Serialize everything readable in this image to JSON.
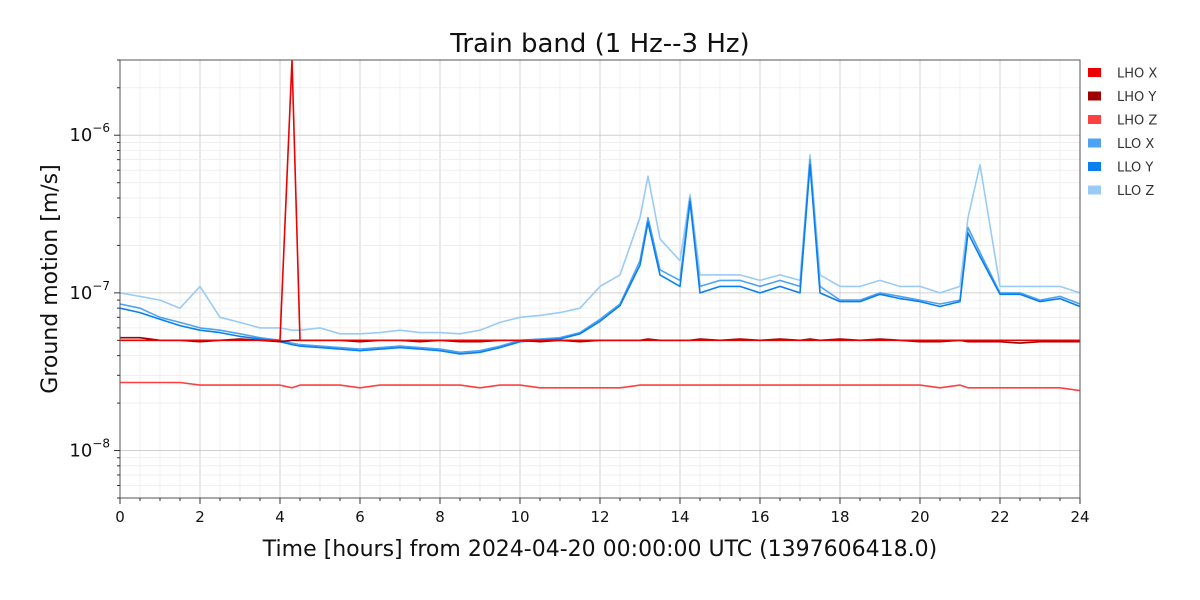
{
  "chart_data": {
    "type": "line",
    "title": "Train band (1 Hz--3 Hz)",
    "xlabel": "Time [hours] from 2024-04-20 00:00:00 UTC (1397606418.0)",
    "ylabel": "Ground motion [m/s]",
    "xlim": [
      0,
      24
    ],
    "ylim": [
      5e-09,
      3e-06
    ],
    "yscale": "log",
    "grid": true,
    "legend_position": "outside-top-right",
    "x_ticks": [
      0,
      2,
      4,
      6,
      8,
      10,
      12,
      14,
      16,
      18,
      20,
      22,
      24
    ],
    "x_tick_labels": [
      "0",
      "2",
      "4",
      "6",
      "8",
      "10",
      "12",
      "14",
      "16",
      "18",
      "20",
      "22",
      "24"
    ],
    "y_ticks": [
      1e-08,
      1e-07,
      1e-06
    ],
    "y_tick_labels": [
      {
        "base": "10",
        "exp": "−8"
      },
      {
        "base": "10",
        "exp": "−7"
      },
      {
        "base": "10",
        "exp": "−6"
      }
    ],
    "x": [
      0,
      0.5,
      1,
      1.5,
      2,
      2.5,
      3,
      3.5,
      4,
      4.3,
      4.5,
      5,
      5.5,
      6,
      6.5,
      7,
      7.5,
      8,
      8.5,
      9,
      9.5,
      10,
      10.5,
      11,
      11.5,
      12,
      12.5,
      13,
      13.2,
      13.5,
      14,
      14.25,
      14.5,
      15,
      15.5,
      16,
      16.5,
      17,
      17.25,
      17.5,
      18,
      18.5,
      19,
      19.5,
      20,
      20.5,
      21,
      21.2,
      21.5,
      22,
      22.5,
      23,
      23.5,
      24
    ],
    "series": [
      {
        "name": "LHO X",
        "color": "#ee0000",
        "values": [
          5e-08,
          5e-08,
          5e-08,
          5e-08,
          5e-08,
          5e-08,
          5e-08,
          5e-08,
          5e-08,
          3e-06,
          5e-08,
          5e-08,
          5e-08,
          5e-08,
          5e-08,
          5e-08,
          5e-08,
          5e-08,
          5e-08,
          5e-08,
          5e-08,
          5e-08,
          5e-08,
          5e-08,
          5e-08,
          5e-08,
          5e-08,
          5e-08,
          5e-08,
          5e-08,
          5e-08,
          5e-08,
          5e-08,
          5e-08,
          5e-08,
          5e-08,
          5e-08,
          5e-08,
          5e-08,
          5e-08,
          5e-08,
          5e-08,
          5e-08,
          5e-08,
          5e-08,
          5e-08,
          5e-08,
          5e-08,
          5e-08,
          5e-08,
          5e-08,
          5e-08,
          5e-08,
          5e-08
        ]
      },
      {
        "name": "LHO Y",
        "color": "#a00000",
        "values": [
          5.2e-08,
          5.2e-08,
          5e-08,
          5e-08,
          4.9e-08,
          5e-08,
          5.1e-08,
          5e-08,
          4.9e-08,
          5e-08,
          5e-08,
          5e-08,
          5e-08,
          4.9e-08,
          5e-08,
          5e-08,
          4.9e-08,
          5e-08,
          4.9e-08,
          4.9e-08,
          5e-08,
          5e-08,
          4.9e-08,
          5e-08,
          4.9e-08,
          5e-08,
          5e-08,
          5e-08,
          5.1e-08,
          5e-08,
          5e-08,
          5e-08,
          5.1e-08,
          5e-08,
          5.1e-08,
          5e-08,
          5.1e-08,
          5e-08,
          5.1e-08,
          5e-08,
          5.1e-08,
          5e-08,
          5.1e-08,
          5e-08,
          4.9e-08,
          4.9e-08,
          5e-08,
          4.9e-08,
          4.9e-08,
          4.9e-08,
          4.8e-08,
          4.9e-08,
          4.9e-08,
          4.9e-08
        ]
      },
      {
        "name": "LHO Z",
        "color": "#ff4040",
        "values": [
          2.7e-08,
          2.7e-08,
          2.7e-08,
          2.7e-08,
          2.6e-08,
          2.6e-08,
          2.6e-08,
          2.6e-08,
          2.6e-08,
          2.5e-08,
          2.6e-08,
          2.6e-08,
          2.6e-08,
          2.5e-08,
          2.6e-08,
          2.6e-08,
          2.6e-08,
          2.6e-08,
          2.6e-08,
          2.5e-08,
          2.6e-08,
          2.6e-08,
          2.5e-08,
          2.5e-08,
          2.5e-08,
          2.5e-08,
          2.5e-08,
          2.6e-08,
          2.6e-08,
          2.6e-08,
          2.6e-08,
          2.6e-08,
          2.6e-08,
          2.6e-08,
          2.6e-08,
          2.6e-08,
          2.6e-08,
          2.6e-08,
          2.6e-08,
          2.6e-08,
          2.6e-08,
          2.6e-08,
          2.6e-08,
          2.6e-08,
          2.6e-08,
          2.5e-08,
          2.6e-08,
          2.5e-08,
          2.5e-08,
          2.5e-08,
          2.5e-08,
          2.5e-08,
          2.5e-08,
          2.4e-08
        ]
      },
      {
        "name": "LLO X",
        "color": "#4da3f2",
        "values": [
          8.5e-08,
          8e-08,
          7e-08,
          6.5e-08,
          6e-08,
          5.8e-08,
          5.5e-08,
          5.2e-08,
          5e-08,
          4.8e-08,
          4.7e-08,
          4.6e-08,
          4.5e-08,
          4.4e-08,
          4.5e-08,
          4.6e-08,
          4.5e-08,
          4.4e-08,
          4.2e-08,
          4.3e-08,
          4.6e-08,
          5e-08,
          5.1e-08,
          5.2e-08,
          5.6e-08,
          6.8e-08,
          8.5e-08,
          1.6e-07,
          3e-07,
          1.4e-07,
          1.2e-07,
          4e-07,
          1.1e-07,
          1.2e-07,
          1.2e-07,
          1.1e-07,
          1.2e-07,
          1.1e-07,
          7e-07,
          1.1e-07,
          9e-08,
          9e-08,
          1e-07,
          9.5e-08,
          9e-08,
          8.5e-08,
          9e-08,
          2.6e-07,
          1.8e-07,
          1e-07,
          1e-07,
          9e-08,
          9.5e-08,
          8.5e-08
        ]
      },
      {
        "name": "LLO Y",
        "color": "#0a7ff0",
        "values": [
          8e-08,
          7.5e-08,
          6.8e-08,
          6.2e-08,
          5.8e-08,
          5.6e-08,
          5.3e-08,
          5.1e-08,
          4.9e-08,
          4.7e-08,
          4.6e-08,
          4.5e-08,
          4.4e-08,
          4.3e-08,
          4.4e-08,
          4.5e-08,
          4.4e-08,
          4.3e-08,
          4.1e-08,
          4.2e-08,
          4.5e-08,
          4.9e-08,
          5e-08,
          5.1e-08,
          5.5e-08,
          6.6e-08,
          8.3e-08,
          1.5e-07,
          2.8e-07,
          1.3e-07,
          1.1e-07,
          3.8e-07,
          1e-07,
          1.1e-07,
          1.1e-07,
          1e-07,
          1.1e-07,
          1e-07,
          6.5e-07,
          1e-07,
          8.8e-08,
          8.8e-08,
          9.8e-08,
          9.2e-08,
          8.8e-08,
          8.2e-08,
          8.8e-08,
          2.4e-07,
          1.7e-07,
          9.8e-08,
          9.8e-08,
          8.8e-08,
          9.2e-08,
          8.2e-08
        ]
      },
      {
        "name": "LLO Z",
        "color": "#9acbf7",
        "values": [
          1e-07,
          9.5e-08,
          9e-08,
          8e-08,
          1.1e-07,
          7e-08,
          6.5e-08,
          6e-08,
          6e-08,
          5.8e-08,
          5.8e-08,
          6e-08,
          5.5e-08,
          5.5e-08,
          5.6e-08,
          5.8e-08,
          5.6e-08,
          5.6e-08,
          5.5e-08,
          5.8e-08,
          6.5e-08,
          7e-08,
          7.2e-08,
          7.5e-08,
          8e-08,
          1.1e-07,
          1.3e-07,
          3e-07,
          5.5e-07,
          2.2e-07,
          1.6e-07,
          4.2e-07,
          1.3e-07,
          1.3e-07,
          1.3e-07,
          1.2e-07,
          1.3e-07,
          1.2e-07,
          7.5e-07,
          1.3e-07,
          1.1e-07,
          1.1e-07,
          1.2e-07,
          1.1e-07,
          1.1e-07,
          1e-07,
          1.1e-07,
          3e-07,
          6.5e-07,
          1.1e-07,
          1.1e-07,
          1.1e-07,
          1.1e-07,
          1e-07
        ]
      }
    ]
  }
}
